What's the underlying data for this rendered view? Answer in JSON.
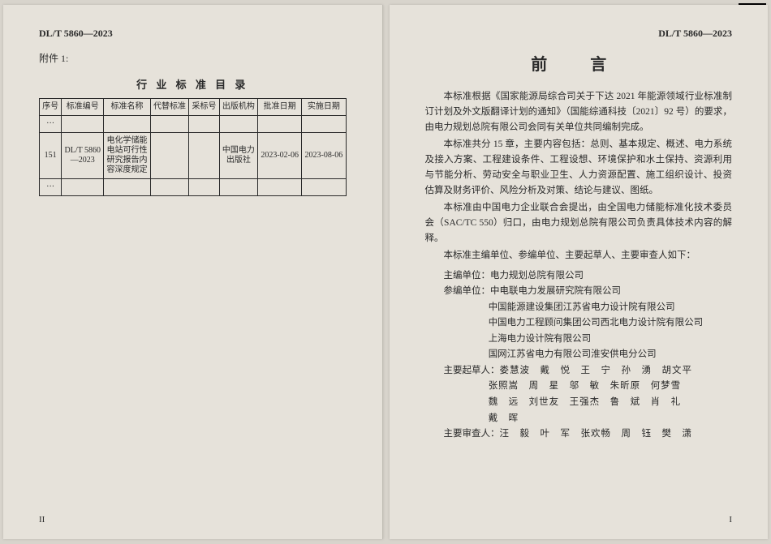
{
  "doc_header": "DL/T 5860—2023",
  "left": {
    "attach": "附件 1:",
    "table_title": "行 业 标 准 目 录",
    "columns": [
      "序号",
      "标准编号",
      "标准名称",
      "代替标准",
      "采标号",
      "出版机构",
      "批准日期",
      "实施日期"
    ],
    "ellipsis": "···",
    "row": {
      "seq": "151",
      "std_no": "DL/T 5860\n—2023",
      "std_name": "电化学储能\n电站可行性\n研究报告内\n容深度规定",
      "replaces": "",
      "adopt": "",
      "publisher": "中国电力\n出版社",
      "approve_date": "2023-02-06",
      "impl_date": "2023-08-06"
    },
    "page_num": "II"
  },
  "right": {
    "title": "前  言",
    "paras": [
      "本标准根据《国家能源局综合司关于下达 2021 年能源领域行业标准制订计划及外文版翻译计划的通知》（国能综通科技〔2021〕92 号）的要求，由电力规划总院有限公司会同有关单位共同编制完成。",
      "本标准共分 15 章，主要内容包括：总则、基本规定、概述、电力系统及接入方案、工程建设条件、工程设想、环境保护和水土保持、资源利用与节能分析、劳动安全与职业卫生、人力资源配置、施工组织设计、投资估算及财务评价、风险分析及对策、结论与建议、图纸。",
      "本标准由中国电力企业联合会提出，由全国电力储能标准化技术委员会（SAC/TC 550）归口，由电力规划总院有限公司负责具体技术内容的解释。",
      "本标准主编单位、参编单位、主要起草人、主要审查人如下："
    ],
    "credits": {
      "editor_label": "主编单位：",
      "editor_val": "电力规划总院有限公司",
      "coeditor_label": "参编单位：",
      "coeditor_vals": [
        "中电联电力发展研究院有限公司",
        "中国能源建设集团江苏省电力设计院有限公司",
        "中国电力工程顾问集团公司西北电力设计院有限公司",
        "上海电力设计院有限公司",
        "国网江苏省电力有限公司淮安供电分公司"
      ],
      "drafter_label": "主要起草人：",
      "drafter_lines": [
        "娄慧波　戴　悦　王　宁　孙　湧　胡文平",
        "张照嵩　周　星　邬　敏　朱昕原　何梦雪",
        "魏　远　刘世友　王强杰　鲁　斌　肖　礼",
        "戴　晖"
      ],
      "reviewer_label": "主要审查人：",
      "reviewer_line": "汪　毅　叶　军　张欢畅　周　钰　樊　潇"
    },
    "page_num": "I"
  },
  "style": {
    "page_bg": "#e6e2da",
    "body_bg": "#d8d4cc",
    "text_color": "#2a2a2a",
    "border_color": "#2a2a2a"
  }
}
